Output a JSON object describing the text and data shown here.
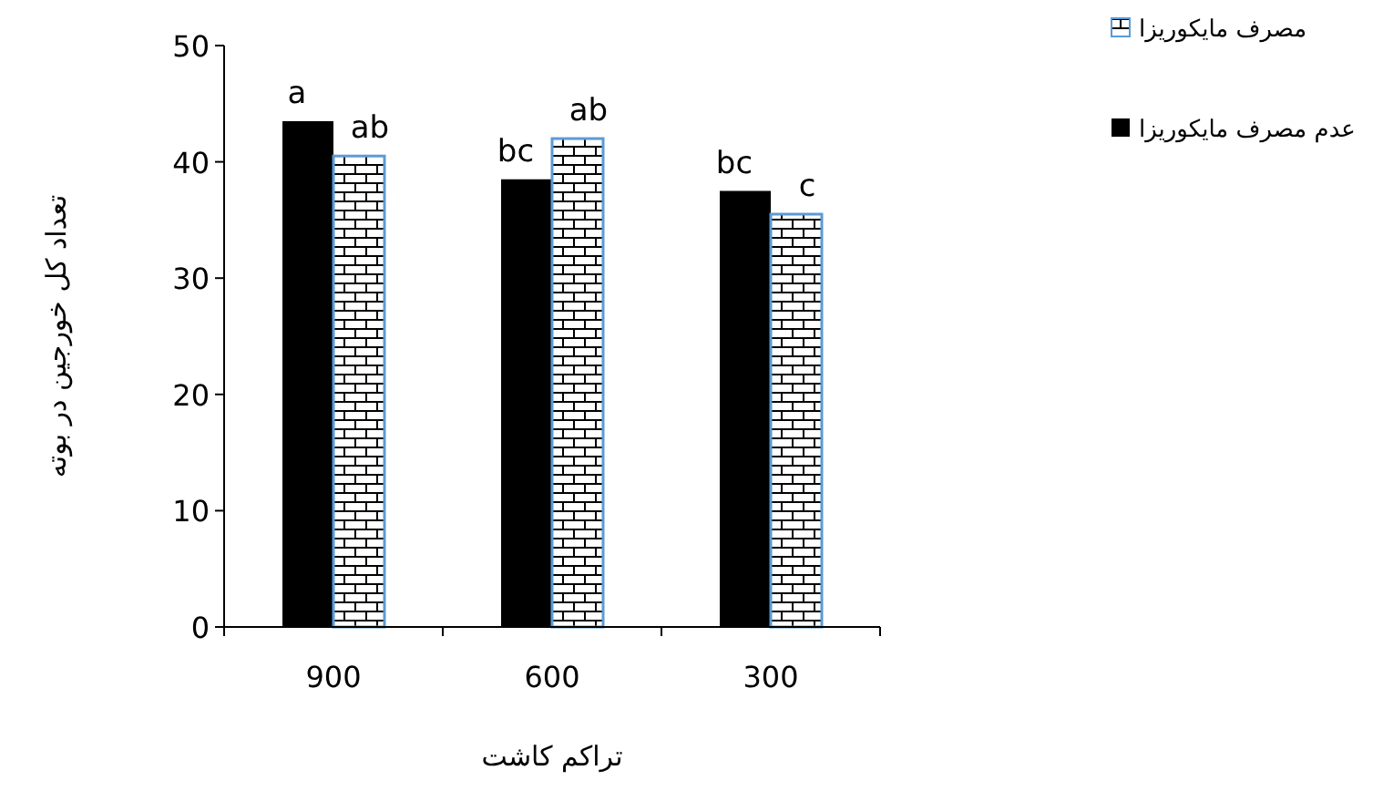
{
  "chart_data": {
    "type": "bar",
    "xlabel": "تراکم کاشت",
    "ylabel": "تعداد کل خورجین در بوته",
    "categories": [
      "900",
      "600",
      "300"
    ],
    "series": [
      {
        "name": "عدم مصرف مایکوریزا",
        "color": "#000000",
        "values": [
          43.5,
          38.5,
          37.5
        ]
      },
      {
        "name": "مصرف مایکوریزا",
        "color": "#5b9bd5",
        "values": [
          40.5,
          42,
          35.5
        ]
      }
    ],
    "ylim": [
      0,
      50
    ],
    "yticks": [
      0,
      10,
      20,
      30,
      40,
      50
    ],
    "grid": false,
    "legend": "right",
    "annotations": [
      {
        "text": "a",
        "x": "900",
        "y": 43.5
      },
      {
        "text": "ab",
        "x": "900",
        "y": 40.5
      },
      {
        "text": "bc",
        "x": "600",
        "y": 38.5
      },
      {
        "text": "ab",
        "x": "600",
        "y": 42
      },
      {
        "text": "bc",
        "x": "300",
        "y": 37.5
      },
      {
        "text": "c",
        "x": "300",
        "y": 35.5
      }
    ]
  }
}
